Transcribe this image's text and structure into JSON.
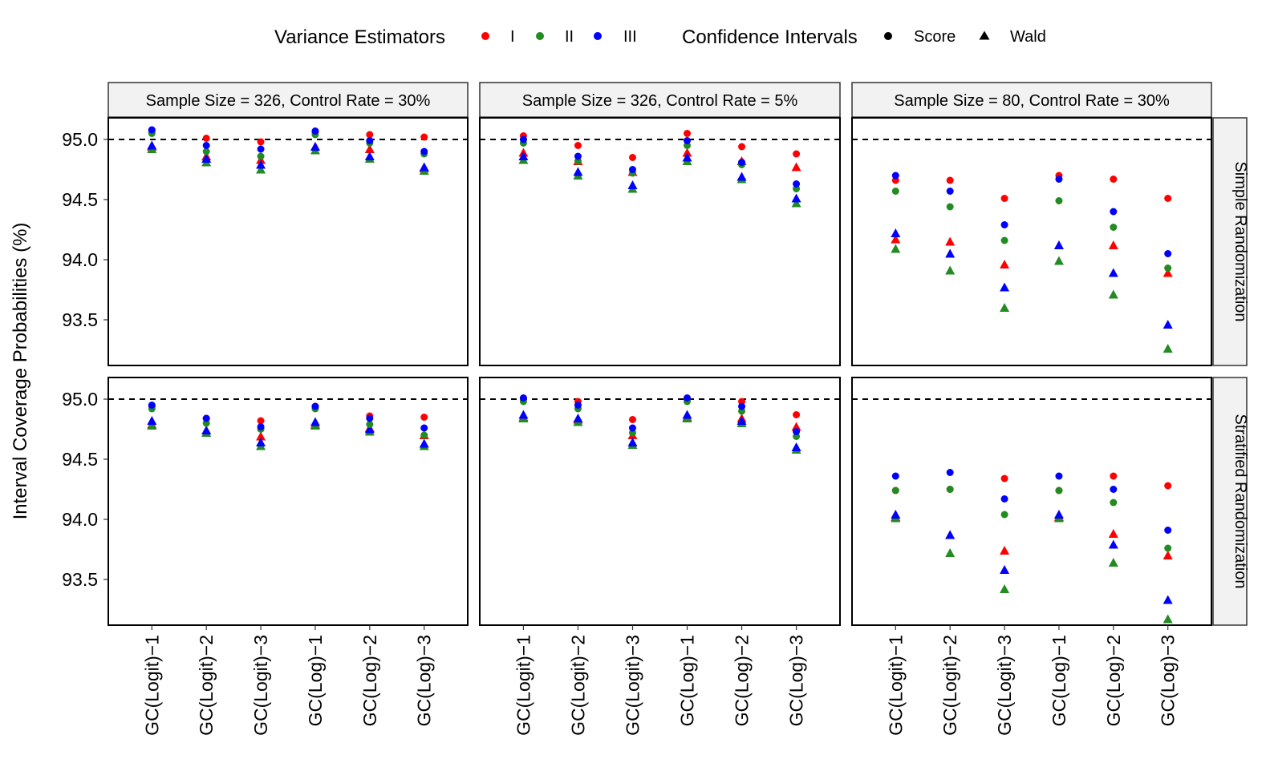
{
  "legend": {
    "variance_title": "Variance Estimators",
    "variance_items": [
      {
        "label": "I",
        "color": "#ff0000"
      },
      {
        "label": "II",
        "color": "#228b22"
      },
      {
        "label": "III",
        "color": "#0000ff"
      }
    ],
    "ci_title": "Confidence Intervals",
    "ci_items": [
      {
        "label": "Score",
        "shape": "circle"
      },
      {
        "label": "Wald",
        "shape": "triangle"
      }
    ]
  },
  "chart_data": {
    "type": "scatter",
    "ylabel": "Interval Coverage Probabilities (%)",
    "y_ticks": [
      "93.5",
      "94.0",
      "94.5",
      "95.0"
    ],
    "ylim": [
      93.12,
      95.18
    ],
    "reference_line": 95.0,
    "categories": [
      "GC(Logit)−1",
      "GC(Logit)−2",
      "GC(Logit)−3",
      "GC(Log)−1",
      "GC(Log)−2",
      "GC(Log)−3"
    ],
    "col_facets": [
      "Sample Size = 326, Control Rate = 30%",
      "Sample Size = 326, Control Rate = 5%",
      "Sample Size = 80, Control Rate = 30%"
    ],
    "row_facets": [
      "Simple Randomization",
      "Stratified Randomization"
    ],
    "panels": [
      {
        "row": 0,
        "col": 0,
        "series": [
          {
            "estimator": "I",
            "ci": "Score",
            "values": [
              95.06,
              95.01,
              94.98,
              95.06,
              95.04,
              95.02
            ]
          },
          {
            "estimator": "II",
            "ci": "Score",
            "values": [
              95.05,
              94.9,
              94.86,
              95.04,
              94.97,
              94.88
            ]
          },
          {
            "estimator": "III",
            "ci": "Score",
            "values": [
              95.08,
              94.95,
              94.92,
              95.07,
              94.99,
              94.9
            ]
          },
          {
            "estimator": "I",
            "ci": "Wald",
            "values": [
              94.94,
              94.86,
              94.83,
              94.94,
              94.92,
              94.76
            ]
          },
          {
            "estimator": "II",
            "ci": "Wald",
            "values": [
              94.92,
              94.81,
              94.75,
              94.91,
              94.84,
              94.74
            ]
          },
          {
            "estimator": "III",
            "ci": "Wald",
            "values": [
              94.95,
              94.84,
              94.79,
              94.94,
              94.86,
              94.77
            ]
          }
        ]
      },
      {
        "row": 0,
        "col": 1,
        "series": [
          {
            "estimator": "I",
            "ci": "Score",
            "values": [
              95.03,
              94.95,
              94.85,
              95.05,
              94.94,
              94.88
            ]
          },
          {
            "estimator": "II",
            "ci": "Score",
            "values": [
              94.97,
              94.82,
              94.72,
              94.95,
              94.79,
              94.59
            ]
          },
          {
            "estimator": "III",
            "ci": "Score",
            "values": [
              95.0,
              94.86,
              94.75,
              94.99,
              94.81,
              94.63
            ]
          },
          {
            "estimator": "I",
            "ci": "Wald",
            "values": [
              94.89,
              94.82,
              94.73,
              94.89,
              94.82,
              94.77
            ]
          },
          {
            "estimator": "II",
            "ci": "Wald",
            "values": [
              94.83,
              94.7,
              94.59,
              94.82,
              94.67,
              94.47
            ]
          },
          {
            "estimator": "III",
            "ci": "Wald",
            "values": [
              94.86,
              94.73,
              94.62,
              94.85,
              94.69,
              94.51
            ]
          }
        ]
      },
      {
        "row": 0,
        "col": 2,
        "series": [
          {
            "estimator": "I",
            "ci": "Score",
            "values": [
              94.66,
              94.66,
              94.51,
              94.7,
              94.67,
              94.51
            ]
          },
          {
            "estimator": "II",
            "ci": "Score",
            "values": [
              94.57,
              94.44,
              94.16,
              94.49,
              94.27,
              93.93
            ]
          },
          {
            "estimator": "III",
            "ci": "Score",
            "values": [
              94.7,
              94.57,
              94.29,
              94.67,
              94.4,
              94.05
            ]
          },
          {
            "estimator": "I",
            "ci": "Wald",
            "values": [
              94.17,
              94.15,
              93.96,
              94.12,
              94.12,
              93.89
            ]
          },
          {
            "estimator": "II",
            "ci": "Wald",
            "values": [
              94.09,
              93.91,
              93.6,
              93.99,
              93.71,
              93.26
            ]
          },
          {
            "estimator": "III",
            "ci": "Wald",
            "values": [
              94.22,
              94.05,
              93.77,
              94.12,
              93.89,
              93.46
            ]
          }
        ]
      },
      {
        "row": 1,
        "col": 0,
        "series": [
          {
            "estimator": "I",
            "ci": "Score",
            "values": [
              94.94,
              94.84,
              94.82,
              94.94,
              94.86,
              94.85
            ]
          },
          {
            "estimator": "II",
            "ci": "Score",
            "values": [
              94.92,
              94.8,
              94.75,
              94.92,
              94.79,
              94.7
            ]
          },
          {
            "estimator": "III",
            "ci": "Score",
            "values": [
              94.95,
              94.84,
              94.77,
              94.94,
              94.84,
              94.76
            ]
          },
          {
            "estimator": "I",
            "ci": "Wald",
            "values": [
              94.79,
              94.74,
              94.69,
              94.79,
              94.76,
              94.7
            ]
          },
          {
            "estimator": "II",
            "ci": "Wald",
            "values": [
              94.78,
              94.72,
              94.61,
              94.78,
              94.73,
              94.61
            ]
          },
          {
            "estimator": "III",
            "ci": "Wald",
            "values": [
              94.82,
              94.74,
              94.64,
              94.81,
              94.75,
              94.63
            ]
          }
        ]
      },
      {
        "row": 1,
        "col": 1,
        "series": [
          {
            "estimator": "I",
            "ci": "Score",
            "values": [
              95.0,
              94.98,
              94.83,
              95.0,
              94.98,
              94.87
            ]
          },
          {
            "estimator": "II",
            "ci": "Score",
            "values": [
              94.98,
              94.92,
              94.72,
              94.98,
              94.9,
              94.69
            ]
          },
          {
            "estimator": "III",
            "ci": "Score",
            "values": [
              95.01,
              94.95,
              94.76,
              95.01,
              94.94,
              94.73
            ]
          },
          {
            "estimator": "I",
            "ci": "Wald",
            "values": [
              94.85,
              94.83,
              94.7,
              94.85,
              94.84,
              94.77
            ]
          },
          {
            "estimator": "II",
            "ci": "Wald",
            "values": [
              94.84,
              94.81,
              94.62,
              94.84,
              94.8,
              94.58
            ]
          },
          {
            "estimator": "III",
            "ci": "Wald",
            "values": [
              94.87,
              94.84,
              94.64,
              94.87,
              94.82,
              94.6
            ]
          }
        ]
      },
      {
        "row": 1,
        "col": 2,
        "series": [
          {
            "estimator": "I",
            "ci": "Score",
            "values": [
              94.24,
              94.25,
              94.34,
              94.24,
              94.36,
              94.28
            ]
          },
          {
            "estimator": "II",
            "ci": "Score",
            "values": [
              94.24,
              94.25,
              94.04,
              94.24,
              94.14,
              93.76
            ]
          },
          {
            "estimator": "III",
            "ci": "Score",
            "values": [
              94.36,
              94.39,
              94.17,
              94.36,
              94.25,
              93.91
            ]
          },
          {
            "estimator": "I",
            "ci": "Wald",
            "values": [
              94.02,
              93.87,
              93.74,
              94.02,
              93.88,
              93.7
            ]
          },
          {
            "estimator": "II",
            "ci": "Wald",
            "values": [
              94.01,
              93.72,
              93.42,
              94.01,
              93.64,
              93.17
            ]
          },
          {
            "estimator": "III",
            "ci": "Wald",
            "values": [
              94.04,
              93.87,
              93.58,
              94.04,
              93.79,
              93.33
            ]
          }
        ]
      }
    ]
  }
}
